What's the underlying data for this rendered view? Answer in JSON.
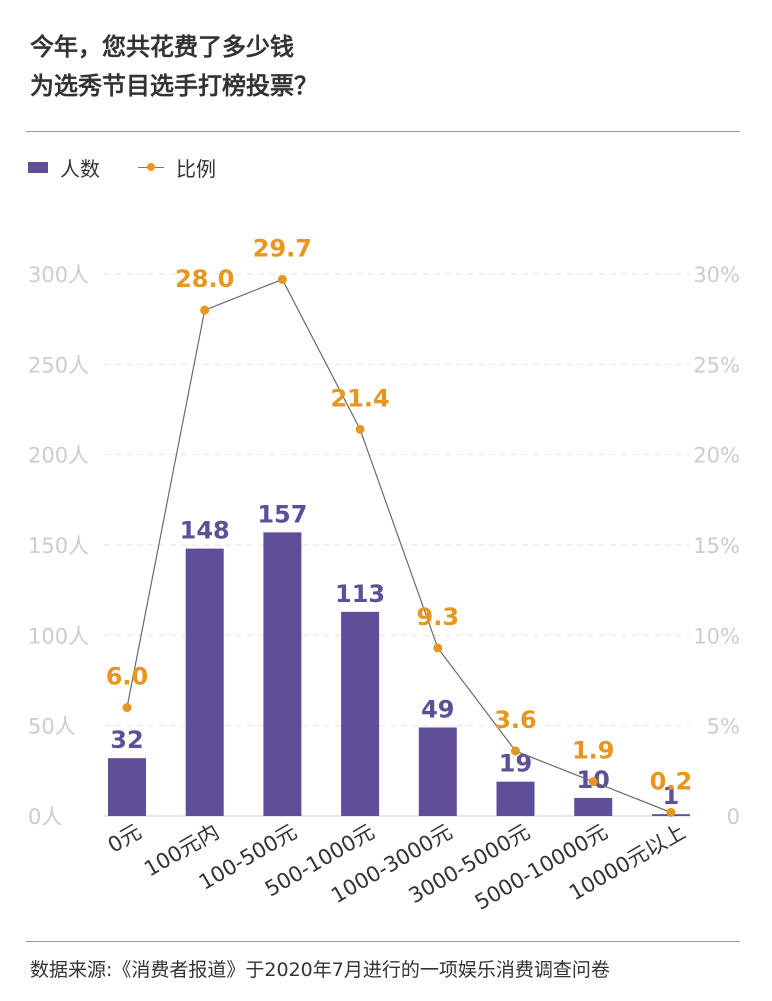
{
  "title": {
    "line1": "今年，您共花费了多少钱",
    "line2": "为选秀节目选手打榜投票？"
  },
  "legend": {
    "bar_label": "人数",
    "line_label": "比例"
  },
  "colors": {
    "bar": "#5e4f98",
    "line": "#6a6a6a",
    "marker": "#e8961e",
    "bar_value_label": "#5e4f98",
    "pct_value_label": "#e8961e",
    "axis_tick": "#cccccc",
    "grid": "#e6e6e6"
  },
  "chart_data": {
    "type": "bar",
    "categories": [
      "0元",
      "100元内",
      "100-500元",
      "500-1000元",
      "1000-3000元",
      "3000-5000元",
      "5000-10000元",
      "10000元以上"
    ],
    "series": [
      {
        "name": "人数",
        "type": "bar",
        "axis": "left",
        "values": [
          32,
          148,
          157,
          113,
          49,
          19,
          10,
          1
        ],
        "labels": [
          "32",
          "148",
          "157",
          "113",
          "49",
          "19",
          "10",
          "1"
        ]
      },
      {
        "name": "比例",
        "type": "line",
        "axis": "right",
        "values": [
          6.0,
          28.0,
          29.7,
          21.4,
          9.3,
          3.6,
          1.9,
          0.2
        ],
        "labels": [
          "6.0",
          "28.0",
          "29.7",
          "21.4",
          "9.3",
          "3.6",
          "1.9",
          "0.2"
        ]
      }
    ],
    "y_left": {
      "range": [
        0,
        300
      ],
      "ticks": [
        0,
        50,
        100,
        150,
        200,
        250,
        300
      ],
      "tick_labels": [
        "0人",
        "50人",
        "100人",
        "150人",
        "200人",
        "250人",
        "300人"
      ]
    },
    "y_right": {
      "range": [
        0,
        30
      ],
      "ticks": [
        0,
        5,
        10,
        15,
        20,
        25,
        30
      ],
      "tick_labels": [
        "0",
        "5%",
        "10%",
        "15%",
        "20%",
        "25%",
        "30%"
      ]
    },
    "grid": true,
    "legend_position": "top-left",
    "title": "今年，您共花费了多少钱为选秀节目选手打榜投票？"
  },
  "source": "数据来源:《消费者报道》于2020年7月进行的一项娱乐消费调查问卷"
}
